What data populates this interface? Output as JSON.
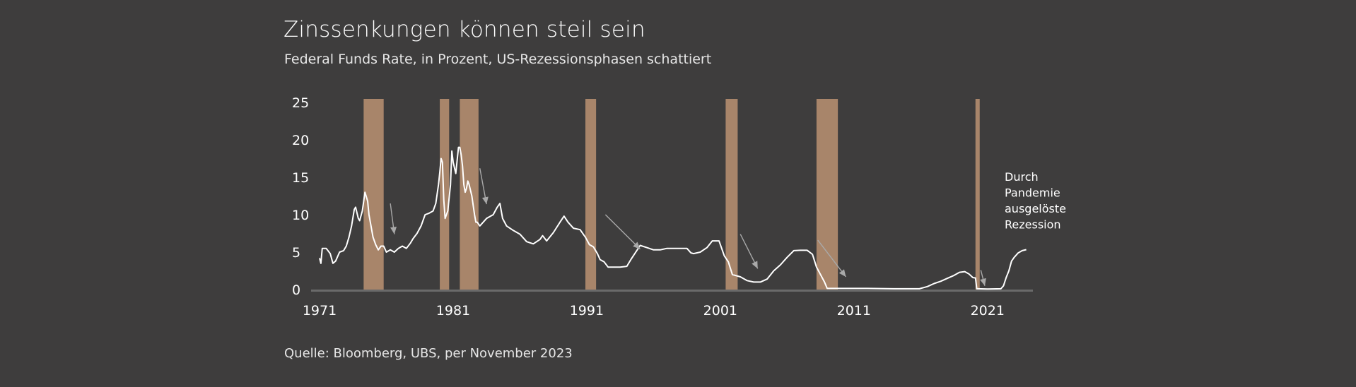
{
  "header": {
    "title": "Zinssenkungen können steil sein",
    "subtitle": "Federal Funds Rate, in Prozent, US-Rezessionsphasen schattiert"
  },
  "footer": {
    "source": "Quelle: Bloomberg, UBS, per November 2023"
  },
  "colors": {
    "background": "#3e3d3d",
    "line": "#ffffff",
    "recession": "#a8856a",
    "arrow": "#a9a9a9",
    "axis": "#6a6a6a"
  },
  "chart_data": {
    "type": "line",
    "title": "Zinssenkungen können steil sein",
    "subtitle": "Federal Funds Rate, in Prozent, US-Rezessionsphasen schattiert",
    "xlabel": "",
    "ylabel": "",
    "xlim": [
      1971.0,
      2024.4
    ],
    "ylim": [
      0,
      25
    ],
    "x_ticks": [
      1971,
      1981,
      1991,
      2001,
      2011,
      2021
    ],
    "x_tick_labels": [
      "1971",
      "1981",
      "1991",
      "2001",
      "2011",
      "2021"
    ],
    "y_ticks": [
      0,
      5,
      10,
      15,
      20,
      25
    ],
    "y_tick_labels": [
      "0",
      "5",
      "10",
      "15",
      "20",
      "25"
    ],
    "grid": false,
    "legend": "none",
    "recessions": [
      [
        1974.3,
        1975.8
      ],
      [
        1980.0,
        1980.7
      ],
      [
        1981.5,
        1982.9
      ],
      [
        1990.9,
        1991.7
      ],
      [
        2001.4,
        2002.3
      ],
      [
        2008.2,
        2009.8
      ],
      [
        2020.1,
        2020.4
      ]
    ],
    "series": [
      {
        "x": [
          1971.0,
          1971.1,
          1971.2,
          1971.5,
          1971.8,
          1972.0,
          1972.2,
          1972.5,
          1972.8,
          1973.0,
          1973.2,
          1973.4,
          1973.6,
          1973.7,
          1973.9,
          1974.0,
          1974.2,
          1974.4,
          1974.6,
          1974.7,
          1974.9,
          1975.0,
          1975.2,
          1975.4,
          1975.6,
          1975.8,
          1976.0,
          1976.3,
          1976.6,
          1976.9,
          1977.2,
          1977.5,
          1977.8,
          1978.0,
          1978.3,
          1978.6,
          1978.9,
          1979.2,
          1979.5,
          1979.7,
          1979.9,
          1980.0,
          1980.1,
          1980.2,
          1980.3,
          1980.4,
          1980.6,
          1980.8,
          1980.9,
          1981.0,
          1981.2,
          1981.4,
          1981.5,
          1981.6,
          1981.7,
          1981.8,
          1981.9,
          1982.0,
          1982.1,
          1982.2,
          1982.4,
          1982.6,
          1982.7,
          1982.8,
          1983.0,
          1983.5,
          1984.0,
          1984.3,
          1984.5,
          1984.7,
          1985.0,
          1985.5,
          1986.0,
          1986.5,
          1987.0,
          1987.5,
          1987.7,
          1988.0,
          1988.5,
          1989.0,
          1989.3,
          1989.6,
          1990.0,
          1990.5,
          1990.9,
          1991.2,
          1991.5,
          1991.8,
          1992.0,
          1992.3,
          1992.6,
          1993.0,
          1993.5,
          1994.0,
          1994.3,
          1994.6,
          1995.0,
          1995.5,
          1996.0,
          1996.5,
          1997.0,
          1997.5,
          1998.0,
          1998.5,
          1998.8,
          1999.0,
          1999.5,
          2000.0,
          2000.4,
          2000.9,
          2001.0,
          2001.3,
          2001.6,
          2001.9,
          2002.5,
          2003.0,
          2003.5,
          2004.0,
          2004.5,
          2005.0,
          2005.5,
          2006.0,
          2006.5,
          2007.0,
          2007.5,
          2007.9,
          2008.2,
          2008.5,
          2008.8,
          2009.0,
          2010.0,
          2012.0,
          2014.0,
          2015.9,
          2016.5,
          2017.0,
          2017.5,
          2018.0,
          2018.5,
          2018.9,
          2019.3,
          2019.6,
          2019.9,
          2020.1,
          2020.2,
          2020.3,
          2021.0,
          2022.0,
          2022.2,
          2022.4,
          2022.6,
          2022.8,
          2023.0,
          2023.3,
          2023.6,
          2023.9
        ],
        "y": [
          4.2,
          3.5,
          5.5,
          5.5,
          4.8,
          3.5,
          3.8,
          5.0,
          5.2,
          5.8,
          7.0,
          8.5,
          10.7,
          11.0,
          9.5,
          9.2,
          10.5,
          13.0,
          11.8,
          10.0,
          8.0,
          7.0,
          6.0,
          5.3,
          5.8,
          5.8,
          5.0,
          5.3,
          5.0,
          5.5,
          5.8,
          5.5,
          6.2,
          6.8,
          7.5,
          8.5,
          10.0,
          10.2,
          10.5,
          11.5,
          14.0,
          15.7,
          17.5,
          17.0,
          12.0,
          9.5,
          10.5,
          14.0,
          18.5,
          17.0,
          15.5,
          19.0,
          19.0,
          18.0,
          16.5,
          14.0,
          13.0,
          13.5,
          14.5,
          14.0,
          12.5,
          10.0,
          9.0,
          9.0,
          8.5,
          9.5,
          10.0,
          11.0,
          11.5,
          9.5,
          8.5,
          7.9,
          7.4,
          6.4,
          6.1,
          6.7,
          7.2,
          6.5,
          7.6,
          9.0,
          9.8,
          9.0,
          8.2,
          8.0,
          7.0,
          6.0,
          5.7,
          4.8,
          4.0,
          3.7,
          3.0,
          3.0,
          3.0,
          3.1,
          4.0,
          4.8,
          5.9,
          5.6,
          5.3,
          5.3,
          5.5,
          5.5,
          5.5,
          5.5,
          4.9,
          4.8,
          5.0,
          5.6,
          6.5,
          6.5,
          6.0,
          4.5,
          3.7,
          2.0,
          1.7,
          1.2,
          1.0,
          1.0,
          1.4,
          2.5,
          3.3,
          4.3,
          5.2,
          5.25,
          5.25,
          4.7,
          3.0,
          2.0,
          1.0,
          0.15,
          0.15,
          0.15,
          0.1,
          0.1,
          0.4,
          0.8,
          1.1,
          1.5,
          1.9,
          2.3,
          2.4,
          2.1,
          1.6,
          1.55,
          0.1,
          0.1,
          0.08,
          0.1,
          0.5,
          1.6,
          2.5,
          3.8,
          4.3,
          4.9,
          5.2,
          5.33
        ]
      }
    ],
    "annotations": [
      {
        "text": [
          "Durch",
          "Pandemie",
          "ausgelöste",
          "Rezession"
        ]
      }
    ],
    "arrows": [
      {
        "from": [
          1976.3,
          11.5
        ],
        "to": [
          1976.6,
          7.4
        ]
      },
      {
        "from": [
          1983.0,
          16.2
        ],
        "to": [
          1983.5,
          11.4
        ]
      },
      {
        "from": [
          1992.4,
          10.0
        ],
        "to": [
          1995.0,
          5.4
        ]
      },
      {
        "from": [
          2002.5,
          7.4
        ],
        "to": [
          2003.8,
          2.8
        ]
      },
      {
        "from": [
          2008.3,
          6.6
        ],
        "to": [
          2010.4,
          1.7
        ]
      },
      {
        "from": [
          2020.5,
          2.6
        ],
        "to": [
          2020.8,
          0.5
        ]
      }
    ]
  }
}
